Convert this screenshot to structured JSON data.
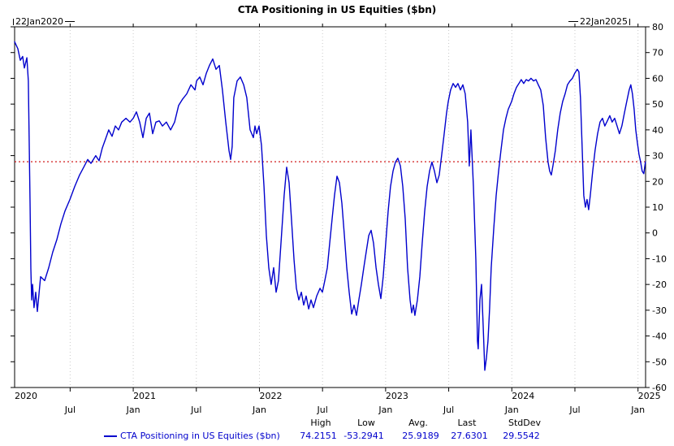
{
  "title": "CTA Positioning in US Equities ($bn)",
  "annotations": {
    "start_date": "22Jan2020",
    "end_date": "22Jan2025"
  },
  "legend": {
    "series_label": "CTA Positioning in US Equities ($bn)"
  },
  "stats": {
    "headers": [
      "High",
      "Low",
      "Avg.",
      "Last",
      "StdDev"
    ],
    "values": [
      "74.2151",
      "-53.2941",
      "25.9189",
      "27.6301",
      "29.5542"
    ]
  },
  "colors": {
    "series_line": "#0000cd",
    "legend_text": "#0000cc",
    "reference_line": "#cc0000",
    "axis": "#000000",
    "grid": "#c9c9c9"
  },
  "chart_data": {
    "type": "line",
    "title": "CTA Positioning in US Equities ($bn)",
    "xlabel": "",
    "ylabel": "",
    "ylim": [
      -60,
      80
    ],
    "y_ticks": [
      80,
      70,
      60,
      50,
      40,
      30,
      20,
      10,
      0,
      -10,
      -20,
      -30,
      -40,
      -50,
      -60
    ],
    "x_range": [
      2020.06,
      2025.06
    ],
    "x_year_ticks": [
      {
        "pos": 2020.06,
        "label": "2020"
      },
      {
        "pos": 2021.0,
        "label": "2021"
      },
      {
        "pos": 2022.0,
        "label": "2022"
      },
      {
        "pos": 2023.0,
        "label": "2023"
      },
      {
        "pos": 2024.0,
        "label": "2024"
      },
      {
        "pos": 2025.0,
        "label": "2025"
      }
    ],
    "x_month_ticks": [
      {
        "pos": 2020.5,
        "label": "Jul"
      },
      {
        "pos": 2021.0,
        "label": "Jan"
      },
      {
        "pos": 2021.5,
        "label": "Jul"
      },
      {
        "pos": 2022.0,
        "label": "Jan"
      },
      {
        "pos": 2022.5,
        "label": "Jul"
      },
      {
        "pos": 2023.0,
        "label": "Jan"
      },
      {
        "pos": 2023.5,
        "label": "Jul"
      },
      {
        "pos": 2024.0,
        "label": "Jan"
      },
      {
        "pos": 2024.5,
        "label": "Jul"
      },
      {
        "pos": 2025.0,
        "label": "Jan"
      }
    ],
    "grid": "faint-dotted-vertical-at-ticks",
    "legend_position": "bottom",
    "reference_line": {
      "value": 27.6301,
      "color": "#cc0000",
      "style": "dotted",
      "meaning": "Last"
    },
    "series": [
      {
        "name": "CTA Positioning in US Equities ($bn)",
        "color": "#0000cd",
        "points": [
          [
            2020.06,
            74.2
          ],
          [
            2020.086,
            71.5
          ],
          [
            2020.105,
            67
          ],
          [
            2020.124,
            68.5
          ],
          [
            2020.137,
            64
          ],
          [
            2020.157,
            68
          ],
          [
            2020.169,
            59
          ],
          [
            2020.182,
            12
          ],
          [
            2020.189,
            -14
          ],
          [
            2020.195,
            -26
          ],
          [
            2020.202,
            -20
          ],
          [
            2020.214,
            -29
          ],
          [
            2020.227,
            -23
          ],
          [
            2020.24,
            -30.5
          ],
          [
            2020.266,
            -17
          ],
          [
            2020.298,
            -18.5
          ],
          [
            2020.33,
            -13.5
          ],
          [
            2020.362,
            -7.5
          ],
          [
            2020.395,
            -2.5
          ],
          [
            2020.427,
            3.5
          ],
          [
            2020.459,
            8.5
          ],
          [
            2020.498,
            13
          ],
          [
            2020.536,
            18
          ],
          [
            2020.575,
            22.5
          ],
          [
            2020.613,
            26
          ],
          [
            2020.639,
            28.5
          ],
          [
            2020.665,
            27
          ],
          [
            2020.703,
            30
          ],
          [
            2020.729,
            28
          ],
          [
            2020.755,
            33
          ],
          [
            2020.781,
            36.5
          ],
          [
            2020.806,
            40
          ],
          [
            2020.832,
            37.5
          ],
          [
            2020.858,
            41.5
          ],
          [
            2020.884,
            40
          ],
          [
            2020.909,
            43
          ],
          [
            2020.942,
            44.5
          ],
          [
            2020.974,
            43
          ],
          [
            2021.0,
            44.5
          ],
          [
            2021.025,
            47
          ],
          [
            2021.051,
            43
          ],
          [
            2021.077,
            37
          ],
          [
            2021.103,
            44.5
          ],
          [
            2021.128,
            46.5
          ],
          [
            2021.154,
            38.5
          ],
          [
            2021.18,
            43
          ],
          [
            2021.206,
            43.5
          ],
          [
            2021.231,
            41.5
          ],
          [
            2021.263,
            43
          ],
          [
            2021.296,
            40
          ],
          [
            2021.328,
            43
          ],
          [
            2021.36,
            49.5
          ],
          [
            2021.392,
            52
          ],
          [
            2021.424,
            54
          ],
          [
            2021.457,
            57.5
          ],
          [
            2021.489,
            55.5
          ],
          [
            2021.502,
            59
          ],
          [
            2021.527,
            60.5
          ],
          [
            2021.553,
            57.5
          ],
          [
            2021.579,
            62
          ],
          [
            2021.604,
            65
          ],
          [
            2021.63,
            67.5
          ],
          [
            2021.656,
            63.5
          ],
          [
            2021.682,
            65
          ],
          [
            2021.707,
            55.5
          ],
          [
            2021.733,
            43
          ],
          [
            2021.759,
            32
          ],
          [
            2021.772,
            28.5
          ],
          [
            2021.784,
            33.5
          ],
          [
            2021.797,
            52.5
          ],
          [
            2021.823,
            59
          ],
          [
            2021.849,
            60.5
          ],
          [
            2021.875,
            57.5
          ],
          [
            2021.9,
            52.5
          ],
          [
            2021.926,
            40
          ],
          [
            2021.952,
            37
          ],
          [
            2021.965,
            41.5
          ],
          [
            2021.978,
            38.5
          ],
          [
            2021.997,
            41.5
          ],
          [
            2022.016,
            34
          ],
          [
            2022.036,
            18
          ],
          [
            2022.055,
            -1
          ],
          [
            2022.074,
            -13.5
          ],
          [
            2022.093,
            -20
          ],
          [
            2022.113,
            -13.5
          ],
          [
            2022.132,
            -23
          ],
          [
            2022.151,
            -18.5
          ],
          [
            2022.171,
            -4
          ],
          [
            2022.196,
            14.5
          ],
          [
            2022.216,
            25.5
          ],
          [
            2022.235,
            19.5
          ],
          [
            2022.254,
            5.5
          ],
          [
            2022.274,
            -10.5
          ],
          [
            2022.293,
            -21.5
          ],
          [
            2022.312,
            -26
          ],
          [
            2022.332,
            -23
          ],
          [
            2022.351,
            -28
          ],
          [
            2022.37,
            -24.5
          ],
          [
            2022.39,
            -29.5
          ],
          [
            2022.409,
            -26
          ],
          [
            2022.428,
            -29
          ],
          [
            2022.454,
            -24.5
          ],
          [
            2022.48,
            -21.5
          ],
          [
            2022.499,
            -23
          ],
          [
            2022.518,
            -18.5
          ],
          [
            2022.538,
            -13.5
          ],
          [
            2022.557,
            -4
          ],
          [
            2022.576,
            5.5
          ],
          [
            2022.595,
            14.5
          ],
          [
            2022.615,
            22
          ],
          [
            2022.634,
            19.5
          ],
          [
            2022.653,
            11.5
          ],
          [
            2022.673,
            -1
          ],
          [
            2022.692,
            -13.5
          ],
          [
            2022.711,
            -23
          ],
          [
            2022.731,
            -31.5
          ],
          [
            2022.75,
            -28
          ],
          [
            2022.769,
            -32
          ],
          [
            2022.788,
            -26
          ],
          [
            2022.808,
            -20
          ],
          [
            2022.827,
            -13.5
          ],
          [
            2022.846,
            -7.5
          ],
          [
            2022.866,
            -1
          ],
          [
            2022.885,
            1
          ],
          [
            2022.904,
            -4
          ],
          [
            2022.924,
            -13.5
          ],
          [
            2022.943,
            -20
          ],
          [
            2022.962,
            -25.5
          ],
          [
            2022.981,
            -17
          ],
          [
            2023.001,
            -4
          ],
          [
            2023.02,
            8.5
          ],
          [
            2023.039,
            18
          ],
          [
            2023.059,
            24
          ],
          [
            2023.078,
            27.5
          ],
          [
            2023.097,
            29
          ],
          [
            2023.117,
            26
          ],
          [
            2023.136,
            18
          ],
          [
            2023.155,
            5.5
          ],
          [
            2023.174,
            -13.5
          ],
          [
            2023.194,
            -26
          ],
          [
            2023.207,
            -31
          ],
          [
            2023.22,
            -28
          ],
          [
            2023.232,
            -32
          ],
          [
            2023.252,
            -26
          ],
          [
            2023.271,
            -17
          ],
          [
            2023.29,
            -4
          ],
          [
            2023.31,
            8.5
          ],
          [
            2023.329,
            18
          ],
          [
            2023.348,
            24
          ],
          [
            2023.367,
            27.5
          ],
          [
            2023.387,
            24
          ],
          [
            2023.406,
            19.5
          ],
          [
            2023.425,
            22.5
          ],
          [
            2023.445,
            30.5
          ],
          [
            2023.464,
            38.5
          ],
          [
            2023.483,
            46.5
          ],
          [
            2023.496,
            51
          ],
          [
            2023.515,
            55.5
          ],
          [
            2023.535,
            58
          ],
          [
            2023.554,
            56.5
          ],
          [
            2023.573,
            58
          ],
          [
            2023.593,
            55.5
          ],
          [
            2023.612,
            57.5
          ],
          [
            2023.631,
            54
          ],
          [
            2023.65,
            43
          ],
          [
            2023.663,
            26
          ],
          [
            2023.676,
            40
          ],
          [
            2023.696,
            18
          ],
          [
            2023.715,
            -10.5
          ],
          [
            2023.728,
            -42
          ],
          [
            2023.734,
            -45
          ],
          [
            2023.747,
            -26
          ],
          [
            2023.76,
            -20
          ],
          [
            2023.773,
            -36
          ],
          [
            2023.786,
            -53.3
          ],
          [
            2023.799,
            -48.5
          ],
          [
            2023.811,
            -42
          ],
          [
            2023.824,
            -29.5
          ],
          [
            2023.837,
            -13.5
          ],
          [
            2023.857,
            2
          ],
          [
            2023.876,
            14.5
          ],
          [
            2023.895,
            24
          ],
          [
            2023.914,
            32
          ],
          [
            2023.934,
            40
          ],
          [
            2023.953,
            44.5
          ],
          [
            2023.972,
            48
          ],
          [
            2023.998,
            51
          ],
          [
            2024.017,
            54
          ],
          [
            2024.037,
            56.5
          ],
          [
            2024.056,
            58
          ],
          [
            2024.075,
            59.5
          ],
          [
            2024.094,
            58
          ],
          [
            2024.114,
            59.5
          ],
          [
            2024.133,
            59
          ],
          [
            2024.152,
            60
          ],
          [
            2024.172,
            59
          ],
          [
            2024.191,
            59.5
          ],
          [
            2024.21,
            57.5
          ],
          [
            2024.229,
            55.5
          ],
          [
            2024.249,
            49.5
          ],
          [
            2024.268,
            37
          ],
          [
            2024.287,
            27.5
          ],
          [
            2024.3,
            24
          ],
          [
            2024.313,
            22.5
          ],
          [
            2024.326,
            26
          ],
          [
            2024.345,
            32
          ],
          [
            2024.364,
            40
          ],
          [
            2024.384,
            46.5
          ],
          [
            2024.403,
            51
          ],
          [
            2024.422,
            54
          ],
          [
            2024.441,
            57.5
          ],
          [
            2024.461,
            59
          ],
          [
            2024.48,
            60
          ],
          [
            2024.499,
            62
          ],
          [
            2024.519,
            63.5
          ],
          [
            2024.532,
            62.5
          ],
          [
            2024.544,
            52.5
          ],
          [
            2024.557,
            34
          ],
          [
            2024.57,
            14.5
          ],
          [
            2024.583,
            10
          ],
          [
            2024.596,
            13
          ],
          [
            2024.609,
            9
          ],
          [
            2024.622,
            14.5
          ],
          [
            2024.641,
            24
          ],
          [
            2024.66,
            32
          ],
          [
            2024.68,
            38.5
          ],
          [
            2024.699,
            43
          ],
          [
            2024.718,
            44.5
          ],
          [
            2024.737,
            41.5
          ],
          [
            2024.757,
            43.5
          ],
          [
            2024.776,
            45.5
          ],
          [
            2024.795,
            43
          ],
          [
            2024.815,
            44.5
          ],
          [
            2024.834,
            41.5
          ],
          [
            2024.853,
            38.5
          ],
          [
            2024.872,
            41.5
          ],
          [
            2024.892,
            46.5
          ],
          [
            2024.911,
            51
          ],
          [
            2024.93,
            55.5
          ],
          [
            2024.943,
            57.5
          ],
          [
            2024.956,
            54
          ],
          [
            2024.969,
            48
          ],
          [
            2024.982,
            40
          ],
          [
            2024.995,
            35
          ],
          [
            2025.008,
            30.5
          ],
          [
            2025.021,
            27.5
          ],
          [
            2025.033,
            24
          ],
          [
            2025.046,
            23
          ],
          [
            2025.059,
            27.6
          ]
        ]
      }
    ]
  }
}
